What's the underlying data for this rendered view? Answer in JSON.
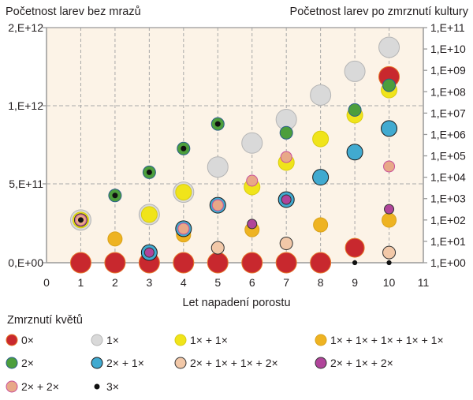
{
  "chart_data": {
    "type": "scatter",
    "title": "",
    "xlabel": "Let napadení porostu",
    "ylabel_left": "Početnost larev bez mrazů",
    "ylabel_right": "Početnost larev po zmrznutí kultury",
    "xlim": [
      0,
      11
    ],
    "x_ticks": [
      "0",
      "1",
      "2",
      "3",
      "4",
      "5",
      "6",
      "7",
      "8",
      "9",
      "10",
      "11"
    ],
    "y_left_ticks": [
      "0,E+00",
      "5,E+11",
      "1,E+12",
      "2,E+12"
    ],
    "y_right_scale": "log",
    "y_right_lim": [
      1,
      100000000000.0
    ],
    "y_right_ticks": [
      "1,E+00",
      "1,E+01",
      "1,E+02",
      "1,E+03",
      "1,E+04",
      "1,E+05",
      "1,E+06",
      "1,E+07",
      "1,E+08",
      "1,E+09",
      "1,E+10",
      "1,E+11"
    ],
    "grid": "dashed at x ticks 1–10 and at 5,E+11 / 1,E+12",
    "plot_background": "#fcf3e7",
    "legend_title": "Zmrznutí květů",
    "legend_placement": "bottom",
    "series": [
      {
        "name": "1×",
        "color": "#d9d9d9",
        "border": "#b5b5b5",
        "points": [
          [
            1,
            100.0
          ],
          [
            3,
            180.0
          ],
          [
            4,
            2000.0
          ],
          [
            5,
            30000.0
          ],
          [
            6,
            400000.0
          ],
          [
            7,
            5000000.0
          ],
          [
            8,
            70000000.0
          ],
          [
            9,
            900000000.0
          ],
          [
            10,
            12000000000.0
          ]
        ]
      },
      {
        "name": "0×",
        "color": "#c8282e",
        "border": "#e5782a",
        "points": [
          [
            1,
            1
          ],
          [
            2,
            1
          ],
          [
            3,
            1
          ],
          [
            4,
            1
          ],
          [
            5,
            1
          ],
          [
            6,
            1
          ],
          [
            7,
            1
          ],
          [
            8,
            1
          ],
          [
            9,
            5
          ],
          [
            10,
            500000000.0
          ]
        ]
      },
      {
        "name": "1× + 1×",
        "color": "#f0e41a",
        "border": "#d8cc10",
        "points": [
          [
            1,
            100.0
          ],
          [
            3,
            180.0
          ],
          [
            4,
            2000.0
          ],
          [
            6,
            3500.0
          ],
          [
            7,
            49000.0
          ],
          [
            8,
            620000.0
          ],
          [
            9,
            8000000.0
          ],
          [
            10,
            120000000.0
          ]
        ]
      },
      {
        "name": "1× + 1× + 1× + 1× + 1×",
        "color": "#eeb322",
        "border": "#d9a21a",
        "points": [
          [
            2,
            13
          ],
          [
            4,
            20
          ],
          [
            6,
            35
          ],
          [
            8,
            59
          ],
          [
            10,
            98
          ]
        ]
      },
      {
        "name": "2× + 1×",
        "color": "#41aad0",
        "border": "#1a1a1a",
        "points": [
          [
            3,
            3
          ],
          [
            4,
            39
          ],
          [
            5,
            490.0
          ],
          [
            7,
            900.0
          ],
          [
            8,
            10000.0
          ],
          [
            9,
            150000.0
          ],
          [
            10,
            1900000.0
          ]
        ]
      },
      {
        "name": "2×",
        "color": "#4c9e3c",
        "border": "#2a5e8a",
        "points": [
          [
            2,
            1400.0
          ],
          [
            3,
            17000.0
          ],
          [
            4,
            220000.0
          ],
          [
            5,
            3100000.0
          ],
          [
            7,
            1200000.0
          ],
          [
            9,
            14000000.0
          ],
          [
            10,
            200000000.0
          ]
        ]
      },
      {
        "name": "2× + 1× + 1× + 2×",
        "color": "#f2c8a8",
        "border": "#333333",
        "points": [
          [
            1,
            100.0
          ],
          [
            5,
            5
          ],
          [
            7,
            8
          ],
          [
            10,
            3
          ]
        ]
      },
      {
        "name": "2× + 2×",
        "color": "#e8a888",
        "border": "#c8509a",
        "points": [
          [
            1,
            100.0
          ],
          [
            4,
            39
          ],
          [
            5,
            490.0
          ],
          [
            6,
            6900.0
          ],
          [
            7,
            88000.0
          ],
          [
            10,
            32000.0
          ]
        ]
      },
      {
        "name": "2× + 1× + 2×",
        "color": "#b0449a",
        "border": "#333333",
        "points": [
          [
            3,
            3
          ],
          [
            6,
            65
          ],
          [
            7,
            900.0
          ],
          [
            10,
            320.0
          ]
        ]
      },
      {
        "name": "3×",
        "color": "#111111",
        "border": "#111111",
        "points": [
          [
            1,
            100.0
          ],
          [
            2,
            1400.0
          ],
          [
            3,
            17000.0
          ],
          [
            4,
            220000.0
          ],
          [
            5,
            3100000.0
          ],
          [
            9,
            1
          ],
          [
            10,
            1
          ]
        ]
      }
    ],
    "legend_order": [
      "0×",
      "1×",
      "1× + 1×",
      "1× + 1× + 1× + 1× + 1×",
      "2×",
      "2× + 1×",
      "2× + 1× + 1× + 2×",
      "2× + 1× + 2×",
      "2× + 2×",
      "3×"
    ]
  }
}
